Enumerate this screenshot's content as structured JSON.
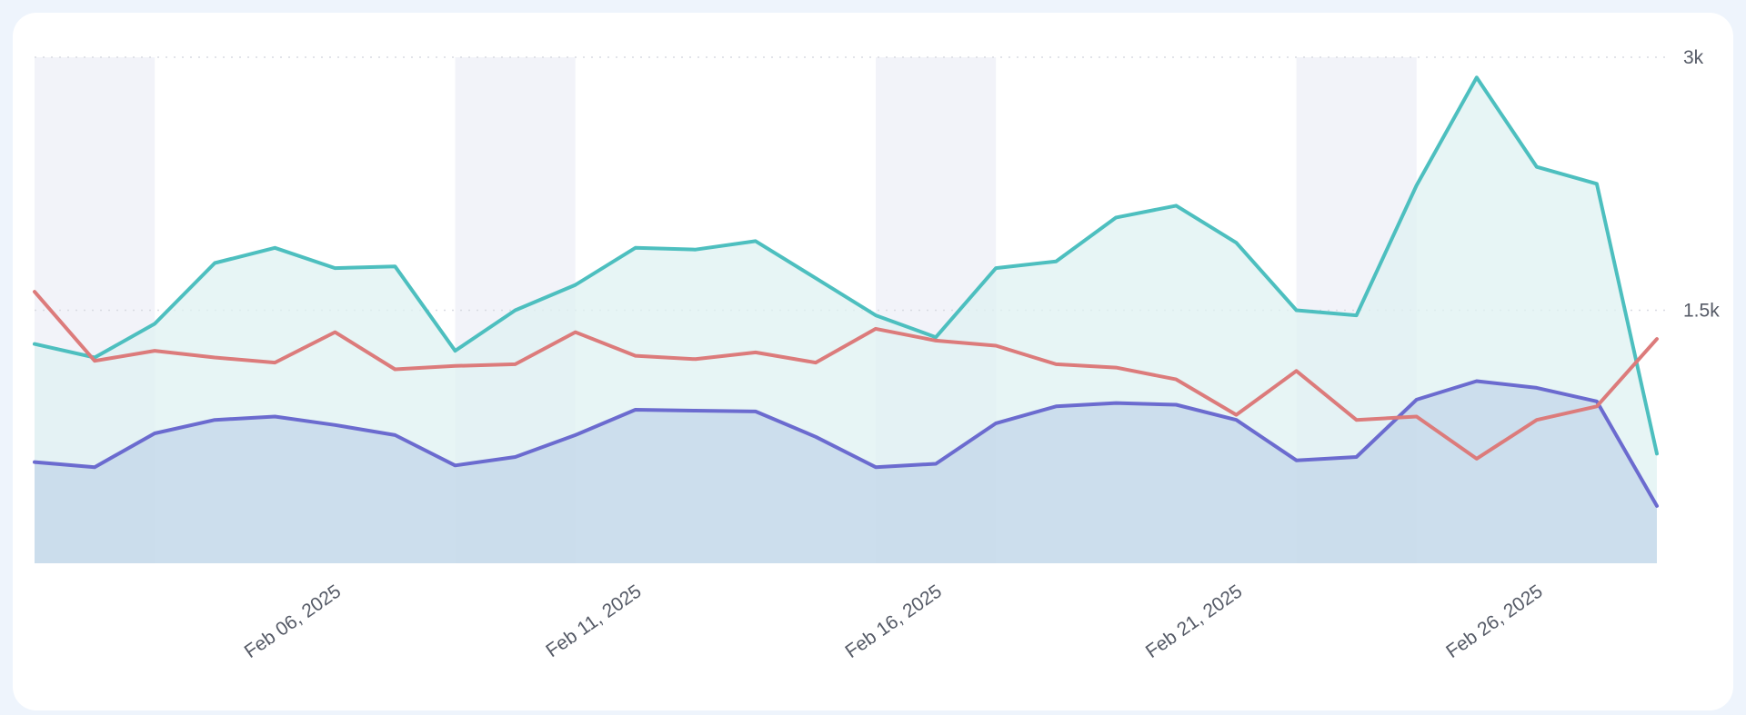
{
  "chart_data": {
    "type": "area",
    "x": [
      "2025-02-01",
      "2025-02-02",
      "2025-02-03",
      "2025-02-04",
      "2025-02-05",
      "2025-02-06",
      "2025-02-07",
      "2025-02-08",
      "2025-02-09",
      "2025-02-10",
      "2025-02-11",
      "2025-02-12",
      "2025-02-13",
      "2025-02-14",
      "2025-02-15",
      "2025-02-16",
      "2025-02-17",
      "2025-02-18",
      "2025-02-19",
      "2025-02-20",
      "2025-02-21",
      "2025-02-22",
      "2025-02-23",
      "2025-02-24",
      "2025-02-25",
      "2025-02-26",
      "2025-02-27",
      "2025-02-28"
    ],
    "x_tick_labels": [
      "Feb 06, 2025",
      "Feb 11, 2025",
      "Feb 16, 2025",
      "Feb 21, 2025",
      "Feb 26, 2025"
    ],
    "x_tick_dates": [
      "2025-02-06",
      "2025-02-11",
      "2025-02-16",
      "2025-02-21",
      "2025-02-26"
    ],
    "y_tick_labels": [
      "3k",
      "1.5k"
    ],
    "y_tick_values": [
      3000,
      1500
    ],
    "ylim": [
      0,
      3000
    ],
    "grid": "horizontal dotted",
    "weekend_bands": [
      [
        "2025-02-01",
        "2025-02-03"
      ],
      [
        "2025-02-08",
        "2025-02-10"
      ],
      [
        "2025-02-15",
        "2025-02-17"
      ],
      [
        "2025-02-22",
        "2025-02-24"
      ]
    ],
    "series": [
      {
        "color": "#4dbfbf",
        "fill": "#dff2f2",
        "area": true,
        "values": [
          1300,
          1220,
          1420,
          1780,
          1870,
          1750,
          1760,
          1260,
          1500,
          1650,
          1870,
          1860,
          1910,
          1690,
          1470,
          1340,
          1750,
          1790,
          2050,
          2120,
          1900,
          1500,
          1470,
          2240,
          2880,
          2350,
          2250,
          650
        ]
      },
      {
        "color": "#6b6bcf",
        "fill": "#c3d5ea",
        "area": true,
        "values": [
          600,
          570,
          770,
          850,
          870,
          820,
          760,
          580,
          630,
          760,
          910,
          905,
          900,
          750,
          570,
          590,
          830,
          930,
          950,
          940,
          850,
          610,
          630,
          970,
          1080,
          1040,
          960,
          340
        ]
      },
      {
        "color": "#dc7b7b",
        "area": false,
        "values": [
          1610,
          1200,
          1260,
          1220,
          1190,
          1370,
          1150,
          1170,
          1180,
          1370,
          1230,
          1210,
          1250,
          1190,
          1390,
          1320,
          1290,
          1180,
          1160,
          1090,
          880,
          1140,
          850,
          870,
          620,
          850,
          930,
          1330
        ]
      }
    ]
  }
}
